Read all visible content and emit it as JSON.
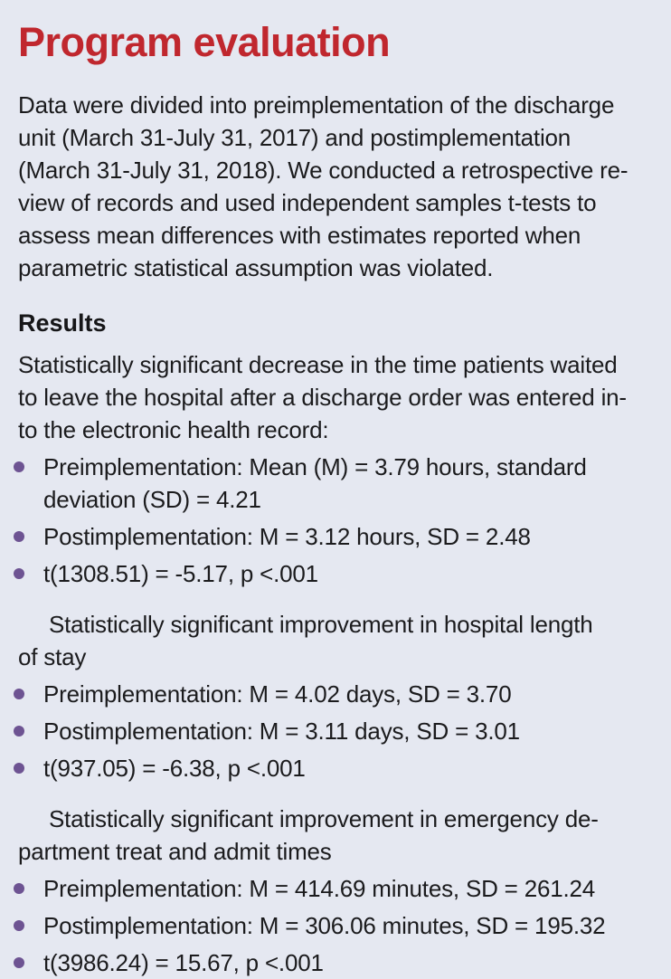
{
  "page": {
    "background_color": "#e5e8f1",
    "accent_red": "#c0272e",
    "bullet_purple": "#6d5392",
    "text_color": "#1b1b1d"
  },
  "title": "Program evaluation",
  "intro": {
    "lines": [
      "Data were divided into preimplementation of the discharge",
      "unit (March 31-July 31, 2017) and postimplementation",
      "(March 31-July 31, 2018). We conducted a retrospective re-",
      "view of records and used independent samples t-tests to",
      "assess mean differences with estimates reported when",
      "parametric statistical assumption was violated."
    ]
  },
  "results": {
    "heading": "Results",
    "intro_lines": [
      "Statistically significant decrease in the time patients waited",
      "to leave the hospital after a discharge order was entered in-",
      "to the electronic health record:"
    ],
    "sections": [
      {
        "lead_lines": [],
        "bullets": [
          [
            "Preimplementation: Mean (M) = 3.79 hours, standard",
            "deviation (SD) = 4.21"
          ],
          [
            "Postimplementation: M = 3.12 hours, SD = 2.48"
          ],
          [
            "t(1308.51) = -5.17, p <.001"
          ]
        ]
      },
      {
        "lead_lines": [
          "Statistically significant improvement in hospital length",
          "of stay"
        ],
        "bullets": [
          [
            "Preimplementation: M = 4.02 days, SD = 3.70"
          ],
          [
            "Postimplementation: M = 3.11 days, SD = 3.01"
          ],
          [
            "t(937.05) = -6.38, p <.001"
          ]
        ]
      },
      {
        "lead_lines": [
          "Statistically significant improvement in emergency de-",
          "partment treat and admit times"
        ],
        "bullets": [
          [
            "Preimplementation: M = 414.69 minutes, SD = 261.24"
          ],
          [
            "Postimplementation: M = 306.06 minutes, SD = 195.32"
          ],
          [
            "t(3986.24) = 15.67, p <.001"
          ]
        ]
      }
    ]
  }
}
